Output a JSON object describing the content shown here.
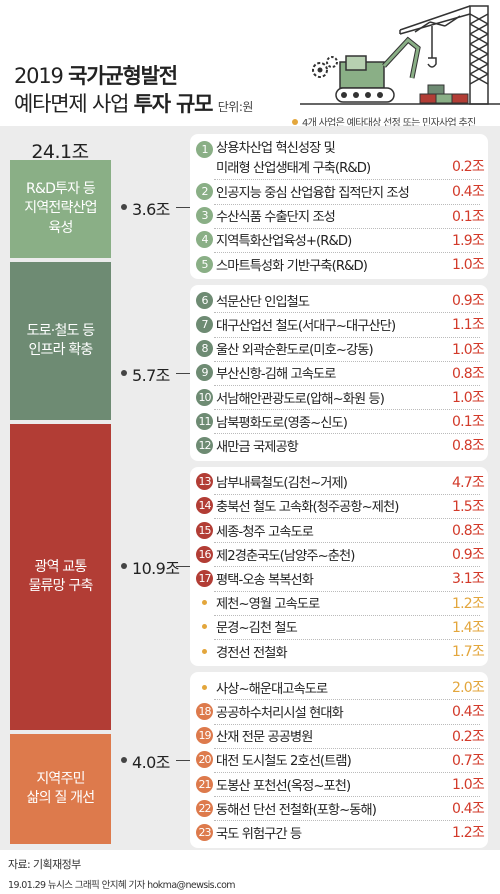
{
  "title_line1_plain": "2019 ",
  "title_line1_bold": "국가균형발전",
  "title_line2_plain": "예타면제 사업 ",
  "title_line2_bold": "투자 규모",
  "unit": "단위:원",
  "note": "4개 사업은 예타대상 선정 또는 민자사업 추진",
  "total": "24.1조",
  "colors": {
    "rd": "#8aaf86",
    "infra": "#6e8b73",
    "wide": "#b23d35",
    "life": "#dd7a4c",
    "value": "#d23a2a",
    "note": "#e3a63c"
  },
  "chart_data": {
    "type": "bar",
    "title": "2019 국가균형발전 예타면제 사업 투자 규모",
    "unit": "단위:원",
    "total": "24.1조",
    "categories": [
      "R&D투자 등 지역전략산업 육성",
      "도로·철도 등 인프라 확충",
      "광역 교통 물류망 구축",
      "지역주민 삶의 질 개선"
    ],
    "values": [
      3.6,
      5.7,
      10.9,
      4.0
    ],
    "category_labels": [
      "R&D투자 등\n지역전략산업\n육성",
      "도로·철도 등\n인프라 확충",
      "광역 교통\n물류망 구축",
      "지역주민\n삶의 질 개선"
    ],
    "value_labels": [
      "3.6조",
      "5.7조",
      "10.9조",
      "4.0조"
    ],
    "groups": [
      {
        "items": [
          {
            "no": "1",
            "name": "상용차산업 혁신성장 및",
            "name2": "미래형 산업생태계 구축(R&D)",
            "value": "0.2조"
          },
          {
            "no": "2",
            "name": "인공지능 중심 산업융합 집적단지 조성",
            "value": "0.4조"
          },
          {
            "no": "3",
            "name": "수산식품 수출단지 조성",
            "value": "0.1조"
          },
          {
            "no": "4",
            "name": "지역특화산업육성+(R&D)",
            "value": "1.9조"
          },
          {
            "no": "5",
            "name": "스마트특성화 기반구축(R&D)",
            "value": "1.0조"
          }
        ]
      },
      {
        "items": [
          {
            "no": "6",
            "name": "석문산단 인입철도",
            "value": "0.9조"
          },
          {
            "no": "7",
            "name": "대구산업선 철도(서대구~대구산단)",
            "value": "1.1조"
          },
          {
            "no": "8",
            "name": "울산 외곽순환도로(미호~강동)",
            "value": "1.0조"
          },
          {
            "no": "9",
            "name": "부산신항-김해 고속도로",
            "value": "0.8조"
          },
          {
            "no": "10",
            "name": "서남해안관광도로(압해~화원 등)",
            "value": "1.0조"
          },
          {
            "no": "11",
            "name": "남북평화도로(영종~신도)",
            "value": "0.1조"
          },
          {
            "no": "12",
            "name": "새만금 국제공항",
            "value": "0.8조"
          }
        ]
      },
      {
        "items": [
          {
            "no": "13",
            "name": "남부내륙철도(김천~거제)",
            "value": "4.7조"
          },
          {
            "no": "14",
            "name": "충북선 철도 고속화(청주공항~제천)",
            "value": "1.5조"
          },
          {
            "no": "15",
            "name": "세종-청주 고속도로",
            "value": "0.8조"
          },
          {
            "no": "16",
            "name": "제2경춘국도(남양주~춘천)",
            "value": "0.9조"
          },
          {
            "no": "17",
            "name": "평택-오송 복복선화",
            "value": "3.1조"
          },
          {
            "no": "",
            "name": "제천~영월 고속도로",
            "value": "1.2조"
          },
          {
            "no": "",
            "name": "문경~김천 철도",
            "value": "1.4조"
          },
          {
            "no": "",
            "name": "경전선 전철화",
            "value": "1.7조"
          }
        ]
      },
      {
        "items": [
          {
            "no": "",
            "name": "사상~해운대고속도로",
            "value": "2.0조"
          },
          {
            "no": "18",
            "name": "공공하수처리시설 현대화",
            "value": "0.4조"
          },
          {
            "no": "19",
            "name": "산재 전문 공공병원",
            "value": "0.2조"
          },
          {
            "no": "20",
            "name": "대전 도시철도 2호선(트램)",
            "value": "0.7조"
          },
          {
            "no": "21",
            "name": "도봉산 포천선(옥정~포천)",
            "value": "1.0조"
          },
          {
            "no": "22",
            "name": "동해선 단선 전철화(포항~동해)",
            "value": "0.4조"
          },
          {
            "no": "23",
            "name": "국도 위험구간 등",
            "value": "1.2조"
          }
        ]
      }
    ]
  },
  "source": "자료: 기획재정부",
  "credit": "19.01.29 뉴시스 그래픽 안지혜 기자 hokma@newsis.com"
}
